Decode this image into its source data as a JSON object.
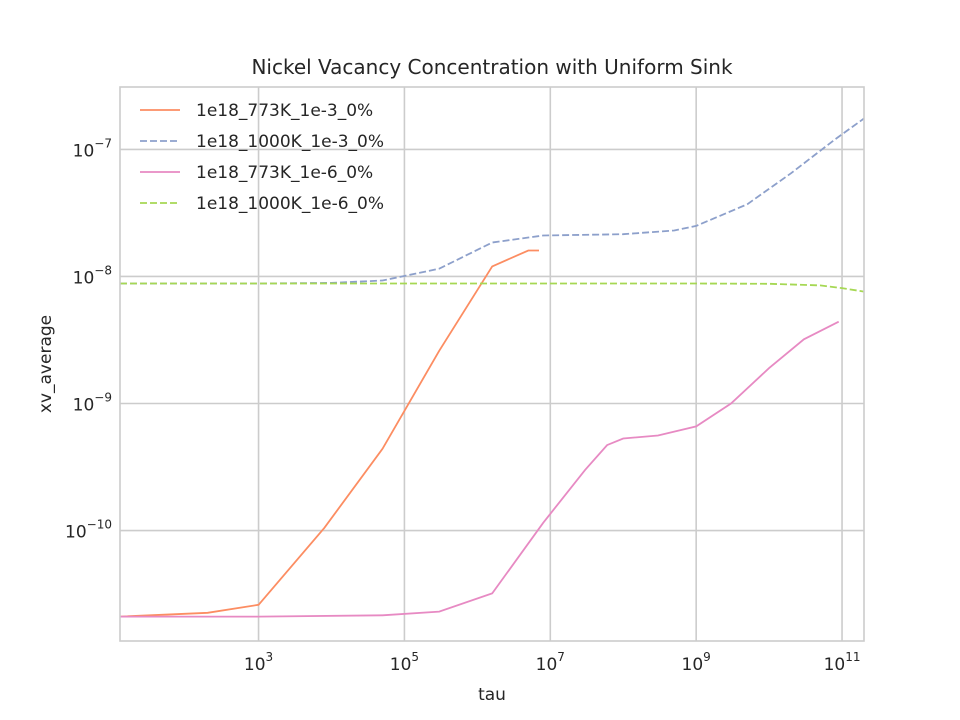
{
  "chart_data": {
    "type": "line",
    "title": "Nickel Vacancy Concentration with Uniform Sink",
    "xlabel": "tau",
    "ylabel": "xv_average",
    "xscale": "log",
    "yscale": "log",
    "xlim": [
      12.6,
      200000000000.0
    ],
    "ylim": [
      1.35e-11,
      3.1e-07
    ],
    "grid": true,
    "legend_position": "top-left",
    "xticks": [
      {
        "base": "10",
        "exp": "3",
        "value": 1000.0
      },
      {
        "base": "10",
        "exp": "5",
        "value": 100000.0
      },
      {
        "base": "10",
        "exp": "7",
        "value": 10000000.0
      },
      {
        "base": "10",
        "exp": "9",
        "value": 1000000000.0
      },
      {
        "base": "10",
        "exp": "11",
        "value": 100000000000.0
      }
    ],
    "yticks": [
      {
        "base": "10",
        "exp": "−10",
        "value": 1e-10
      },
      {
        "base": "10",
        "exp": "−9",
        "value": 1e-09
      },
      {
        "base": "10",
        "exp": "−8",
        "value": 1e-08
      },
      {
        "base": "10",
        "exp": "−7",
        "value": 1e-07
      }
    ],
    "series": [
      {
        "name": "1e18_773K_1e-3_0%",
        "color": "#fc8d62",
        "dash": "solid",
        "x": [
          12.6,
          200,
          1000,
          8000,
          50000,
          300000,
          1600000,
          5000000,
          7000000
        ],
        "y": [
          2.1e-11,
          2.25e-11,
          2.6e-11,
          1.05e-10,
          4.4e-10,
          2.6e-09,
          1.2e-08,
          1.6e-08,
          1.6e-08
        ]
      },
      {
        "name": "1e18_1000K_1e-3_0%",
        "color": "#8da0cb",
        "dash": "dashed",
        "x": [
          12.6,
          1000,
          10000,
          50000,
          300000,
          1600000,
          8000000,
          100000000,
          500000000,
          1000000000,
          5000000000,
          20000000000,
          80000000000,
          200000000000
        ],
        "y": [
          8.8e-09,
          8.8e-09,
          8.9e-09,
          9.3e-09,
          1.15e-08,
          1.85e-08,
          2.1e-08,
          2.15e-08,
          2.3e-08,
          2.5e-08,
          3.7e-08,
          6.5e-08,
          1.2e-07,
          1.75e-07
        ]
      },
      {
        "name": "1e18_773K_1e-6_0%",
        "color": "#e78ac3",
        "dash": "solid",
        "x": [
          12.6,
          1000,
          50000,
          300000,
          1600000,
          8000000,
          30000000,
          60000000,
          100000000,
          300000000,
          1000000000,
          3000000000,
          10000000000,
          30000000000,
          90000000000
        ],
        "y": [
          2.1e-11,
          2.1e-11,
          2.15e-11,
          2.3e-11,
          3.2e-11,
          1.15e-10,
          3e-10,
          4.7e-10,
          5.3e-10,
          5.6e-10,
          6.6e-10,
          1e-09,
          1.9e-09,
          3.2e-09,
          4.4e-09
        ]
      },
      {
        "name": "1e18_1000K_1e-6_0%",
        "color": "#a6d854",
        "dash": "dashed",
        "x": [
          12.6,
          1000,
          100000,
          10000000,
          1000000000,
          10000000000,
          50000000000,
          100000000000,
          200000000000
        ],
        "y": [
          8.8e-09,
          8.8e-09,
          8.8e-09,
          8.8e-09,
          8.8e-09,
          8.75e-09,
          8.5e-09,
          8.1e-09,
          7.6e-09
        ]
      }
    ]
  }
}
